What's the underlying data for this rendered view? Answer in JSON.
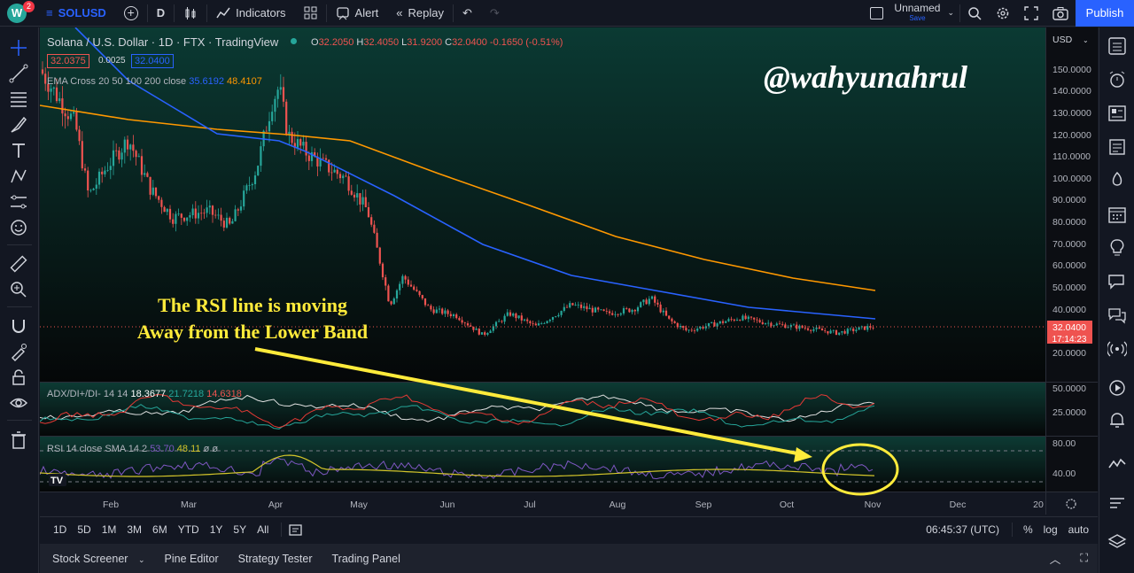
{
  "topbar": {
    "avatar_letter": "W",
    "notif_count": "2",
    "symbol": "SOLUSD",
    "interval": "D",
    "indicators_label": "Indicators",
    "alert_label": "Alert",
    "replay_label": "Replay",
    "layout_name": "Unnamed",
    "layout_status": "Save",
    "publish_label": "Publish"
  },
  "legend": {
    "title": "Solana / U.S. Dollar · 1D · FTX · TradingView",
    "ohlc": {
      "O": "32.2050",
      "H": "32.4050",
      "L": "31.9200",
      "C": "32.0400",
      "change": "-0.1650 (-0.51%)"
    },
    "bid": "32.0375",
    "spread": "0.0025",
    "ask": "32.0400",
    "ema_label": "EMA Cross 20 50 100 200 close",
    "ema_val1": "35.6192",
    "ema_val2": "48.4107"
  },
  "price_axis": {
    "currency": "USD",
    "ticks": [
      "150.0000",
      "140.0000",
      "130.0000",
      "120.0000",
      "110.0000",
      "100.0000",
      "90.0000",
      "80.0000",
      "70.0000",
      "60.0000",
      "50.0000",
      "40.0000",
      "20.0000"
    ],
    "current_price": "32.0400",
    "countdown": "17:14:23"
  },
  "adx": {
    "label": "ADX/DI+/DI- 14 14",
    "v1": "18.3677",
    "v2": "21.7218",
    "v3": "14.6318",
    "ticks": [
      "50.0000",
      "25.0000"
    ]
  },
  "rsi": {
    "label": "RSI 14 close SMA 14 2",
    "v1": "53.70",
    "v2": "48.11",
    "v3": "ø",
    "v4": "ø",
    "ticks": [
      "80.00",
      "40.00"
    ]
  },
  "time_axis": [
    "Feb",
    "Mar",
    "Apr",
    "May",
    "Jun",
    "Jul",
    "Aug",
    "Sep",
    "Oct",
    "Nov",
    "Dec",
    "20"
  ],
  "bottombar": {
    "ranges": [
      "1D",
      "5D",
      "1M",
      "3M",
      "6M",
      "YTD",
      "1Y",
      "5Y",
      "All"
    ],
    "clock": "06:45:37 (UTC)",
    "pct": "%",
    "log": "log",
    "auto": "auto"
  },
  "panels": [
    "Stock Screener",
    "Pine Editor",
    "Strategy Tester",
    "Trading Panel"
  ],
  "overlay": {
    "watermark": "@wahyunahrul",
    "annotation_line1": "The RSI line is moving",
    "annotation_line2": "Away from the Lower Band"
  },
  "colors": {
    "background": "#131722",
    "up": "#26a69a",
    "down": "#ef5350",
    "ema_blue": "#2962ff",
    "ema_orange": "#ff9800",
    "rsi_line": "#7e57c2",
    "rsi_sma": "#d4c52a",
    "annotation": "#ffeb3b",
    "publish": "#2962ff"
  }
}
